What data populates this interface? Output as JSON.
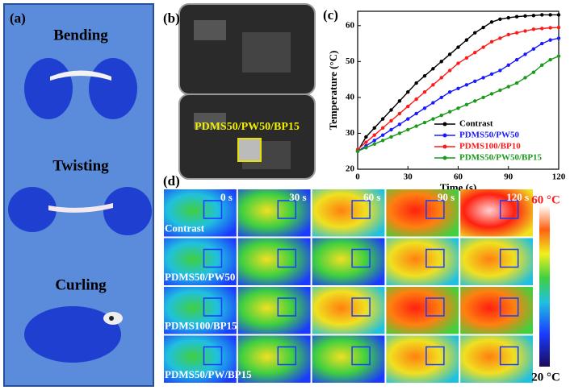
{
  "panel_a": {
    "label": "(a)",
    "items": [
      "Bending",
      "Twisting",
      "Curling"
    ]
  },
  "panel_b": {
    "label": "(b)",
    "annotation": "PDMS50/PW50/BP15"
  },
  "panel_c": {
    "label": "(c)"
  },
  "chart_data": {
    "type": "line",
    "x_label": "Time (s)",
    "y_label": "Temperature (°C)",
    "x": [
      0,
      5,
      10,
      15,
      20,
      25,
      30,
      35,
      40,
      45,
      50,
      55,
      60,
      65,
      70,
      75,
      80,
      85,
      90,
      95,
      100,
      105,
      110,
      115,
      120
    ],
    "series": [
      {
        "name": "Contrast",
        "color": "#000000",
        "values": [
          25,
          29,
          31.5,
          34,
          36.5,
          39,
          41.5,
          44,
          46,
          48,
          50,
          52,
          54,
          56,
          58,
          59.5,
          61,
          61.8,
          62.2,
          62.5,
          62.7,
          62.8,
          63,
          63,
          63
        ]
      },
      {
        "name": "PDMS50/PW50",
        "color": "#1a1aff",
        "values": [
          25,
          26.5,
          28,
          29.5,
          31,
          32.5,
          34,
          35.5,
          37,
          38.5,
          40,
          41.5,
          42.5,
          43.5,
          44.5,
          45.5,
          46.5,
          47.5,
          49,
          50.5,
          52,
          53.5,
          55,
          56,
          56.5
        ]
      },
      {
        "name": "PDMS100/BP10",
        "color": "#ff1a1a",
        "values": [
          25.5,
          27.5,
          29.5,
          31.5,
          33.5,
          35.5,
          37.5,
          39.5,
          41.5,
          43.5,
          45.5,
          47.5,
          49.5,
          51,
          52.5,
          54,
          55.5,
          56.5,
          57.5,
          58,
          58.5,
          59,
          59.2,
          59.4,
          59.5
        ]
      },
      {
        "name": "PDMS50/PW50/BP15",
        "color": "#1a9a1a",
        "values": [
          25,
          26,
          27,
          28,
          29,
          30,
          31,
          32,
          33,
          34,
          35,
          36,
          37,
          38,
          39,
          40,
          41,
          42,
          43,
          44,
          45.5,
          47,
          49,
          50.5,
          51.5
        ]
      }
    ],
    "xlim": [
      0,
      120
    ],
    "xticks": [
      0,
      30,
      60,
      90,
      120
    ],
    "ylim": [
      20,
      64
    ],
    "yticks": [
      20,
      30,
      40,
      50,
      60
    ],
    "grid": false,
    "legend": "lower right"
  },
  "panel_d": {
    "label": "(d)",
    "times": [
      "0 s",
      "30 s",
      "60 s",
      "90 s",
      "120 s"
    ],
    "rows": [
      "Contrast",
      "PDMS50/PW50",
      "PDMS100/BP15",
      "PDMS50/PW/BP15"
    ],
    "colorbar": {
      "max": "60 °C",
      "min": "20 °C"
    }
  }
}
